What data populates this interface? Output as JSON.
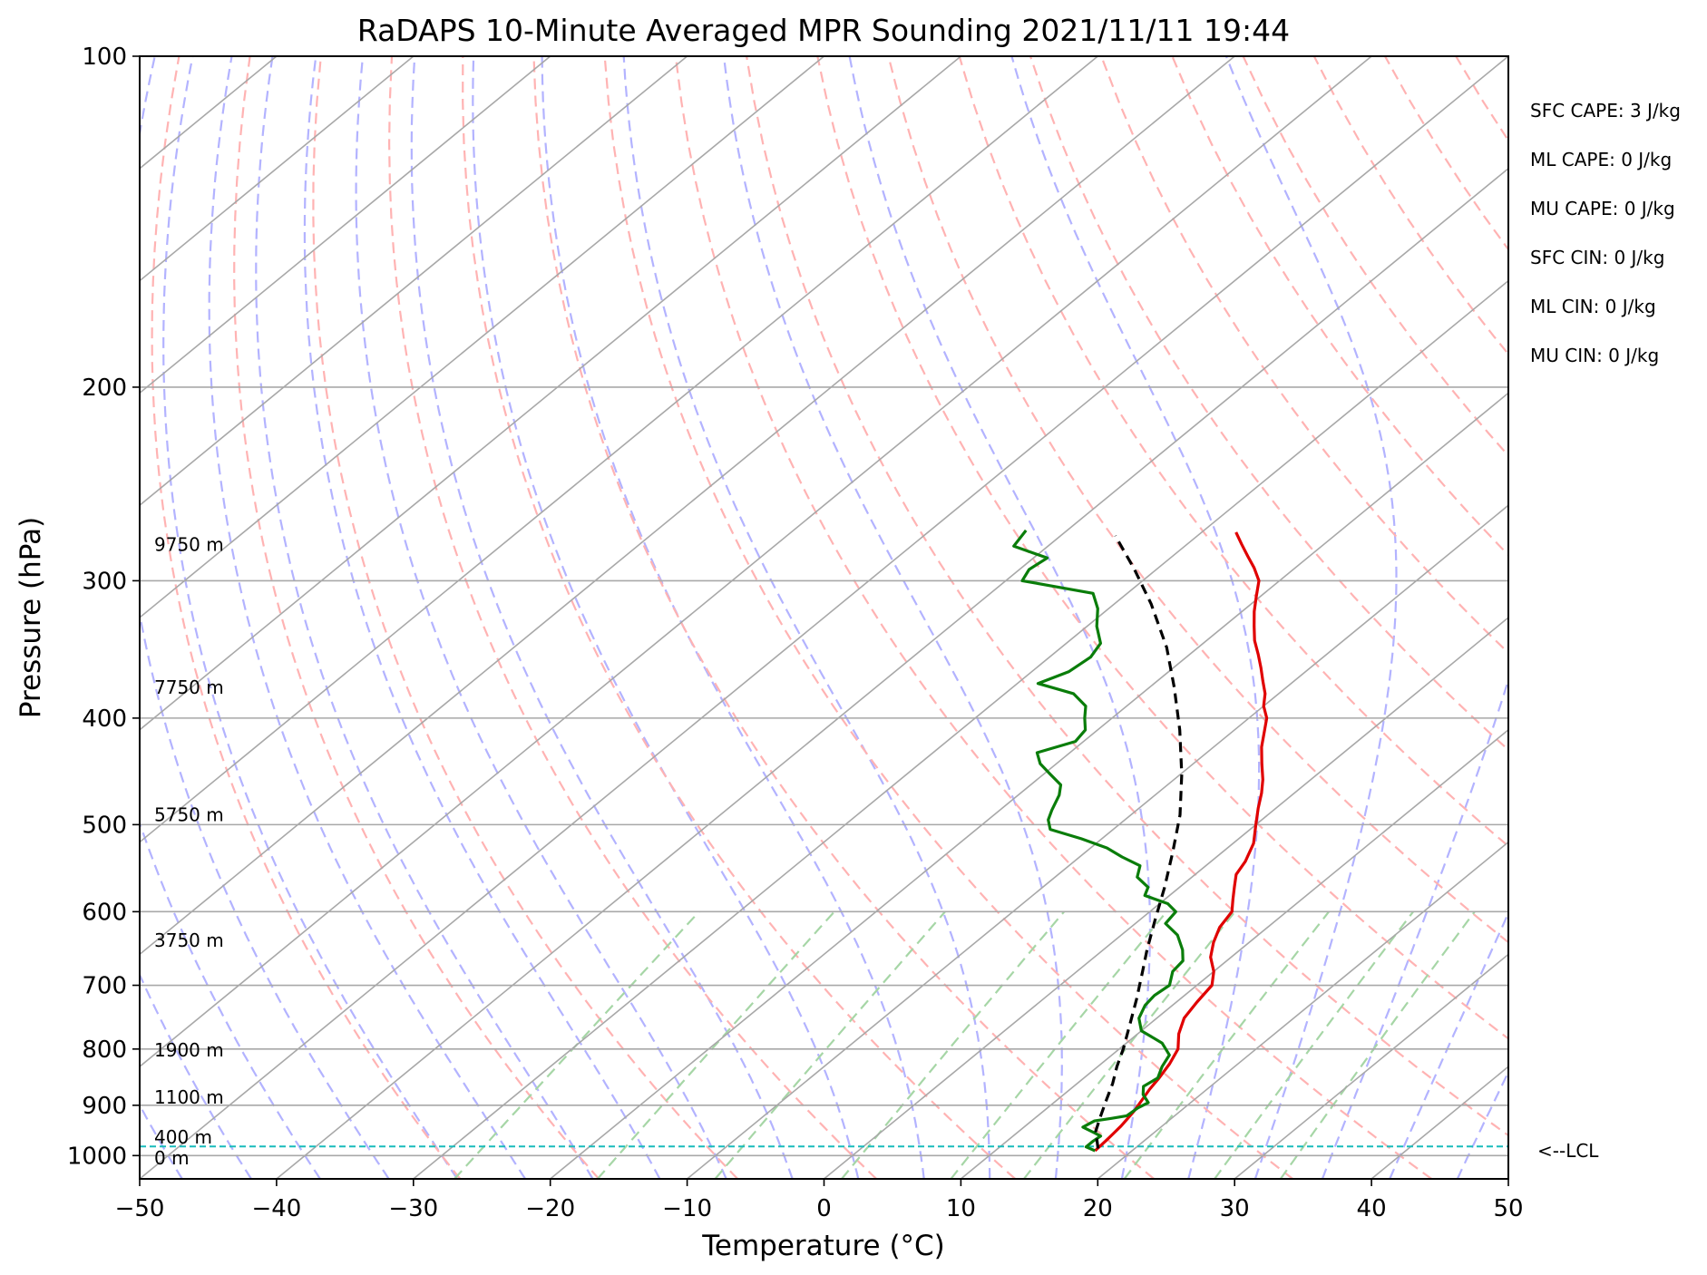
{
  "chart_data": {
    "type": "line",
    "chart_kind": "skew-T log-P diagram",
    "title": "RaDAPS 10-Minute Averaged MPR Sounding 2021/11/11 19:44",
    "xlabel": "Temperature (°C)",
    "ylabel": "Pressure (hPa)",
    "xlim": [
      -50,
      50
    ],
    "ylim": [
      1050,
      100
    ],
    "y_scale": "log",
    "grid": true,
    "x_ticks": [
      "−50",
      "−40",
      "−30",
      "−20",
      "−10",
      "0",
      "10",
      "20",
      "30",
      "40",
      "50"
    ],
    "y_ticks": [
      "100",
      "200",
      "300",
      "400",
      "500",
      "600",
      "700",
      "800",
      "900",
      "1000"
    ],
    "series": [
      {
        "role": "temperature",
        "color": "#e00000",
        "points": [
          [
            17.3,
            990
          ],
          [
            17.2,
            970
          ],
          [
            17.1,
            955
          ],
          [
            17.0,
            940
          ],
          [
            16.8,
            925
          ],
          [
            16.6,
            910
          ],
          [
            16.2,
            890
          ],
          [
            15.8,
            870
          ],
          [
            15.5,
            850
          ],
          [
            15.0,
            825
          ],
          [
            14.3,
            800
          ],
          [
            13.0,
            775
          ],
          [
            12.0,
            750
          ],
          [
            11.5,
            725
          ],
          [
            11.1,
            700
          ],
          [
            10.0,
            680
          ],
          [
            8.5,
            660
          ],
          [
            7.4,
            640
          ],
          [
            6.5,
            620
          ],
          [
            6.0,
            600
          ],
          [
            5.0,
            585
          ],
          [
            4.0,
            570
          ],
          [
            3.0,
            555
          ],
          [
            2.5,
            540
          ],
          [
            1.5,
            520
          ],
          [
            0.0,
            500
          ],
          [
            -1.3,
            483
          ],
          [
            -2.4,
            468
          ],
          [
            -3.5,
            455
          ],
          [
            -5.0,
            440
          ],
          [
            -6.5,
            425
          ],
          [
            -7.8,
            410
          ],
          [
            -8.7,
            400
          ],
          [
            -10.0,
            390
          ],
          [
            -11.0,
            380
          ],
          [
            -12.3,
            370
          ],
          [
            -13.6,
            360
          ],
          [
            -15.0,
            350
          ],
          [
            -16.5,
            340
          ],
          [
            -17.8,
            330
          ],
          [
            -19.1,
            320
          ],
          [
            -20.3,
            310
          ],
          [
            -21.5,
            300
          ],
          [
            -23.0,
            292
          ],
          [
            -24.5,
            285
          ],
          [
            -26.0,
            278
          ],
          [
            -27.5,
            271
          ]
        ]
      },
      {
        "role": "dewpoint",
        "color": "#0a7d0a",
        "points": [
          [
            17.3,
            990
          ],
          [
            16.3,
            982
          ],
          [
            16.3,
            970
          ],
          [
            16.4,
            960
          ],
          [
            15.6,
            953
          ],
          [
            14.3,
            942
          ],
          [
            14.6,
            930
          ],
          [
            15.6,
            925
          ],
          [
            16.5,
            920
          ],
          [
            16.6,
            905
          ],
          [
            16.9,
            895
          ],
          [
            15.8,
            880
          ],
          [
            15.1,
            865
          ],
          [
            15.4,
            850
          ],
          [
            14.7,
            830
          ],
          [
            14.2,
            810
          ],
          [
            12.6,
            790
          ],
          [
            10.0,
            770
          ],
          [
            8.7,
            750
          ],
          [
            8.0,
            730
          ],
          [
            7.8,
            715
          ],
          [
            8.0,
            700
          ],
          [
            7.0,
            680
          ],
          [
            6.8,
            665
          ],
          [
            5.8,
            650
          ],
          [
            4.1,
            630
          ],
          [
            2.2,
            615
          ],
          [
            1.9,
            600
          ],
          [
            0.6,
            590
          ],
          [
            -1.8,
            580
          ],
          [
            -2.3,
            570
          ],
          [
            -4.0,
            558
          ],
          [
            -4.8,
            545
          ],
          [
            -6.9,
            535
          ],
          [
            -8.8,
            525
          ],
          [
            -11.5,
            515
          ],
          [
            -14.6,
            505
          ],
          [
            -15.6,
            495
          ],
          [
            -16.2,
            485
          ],
          [
            -17.0,
            470
          ],
          [
            -17.8,
            460
          ],
          [
            -19.5,
            450
          ],
          [
            -21.2,
            440
          ],
          [
            -22.4,
            430
          ],
          [
            -20.6,
            420
          ],
          [
            -20.9,
            410
          ],
          [
            -22.0,
            400
          ],
          [
            -23.0,
            390
          ],
          [
            -25.0,
            380
          ],
          [
            -28.5,
            372
          ],
          [
            -27.3,
            363
          ],
          [
            -27.0,
            352
          ],
          [
            -27.5,
            342
          ],
          [
            -29.3,
            330
          ],
          [
            -30.8,
            318
          ],
          [
            -32.5,
            308
          ],
          [
            -38.8,
            300
          ],
          [
            -39.3,
            293
          ],
          [
            -39.0,
            286
          ],
          [
            -42.5,
            279
          ],
          [
            -43.0,
            270
          ]
        ]
      },
      {
        "role": "parcel",
        "color": "#000000",
        "style": "dashed",
        "points": [
          [
            17.3,
            985
          ],
          [
            15.6,
            950
          ],
          [
            14.6,
            920
          ],
          [
            13.6,
            890
          ],
          [
            12.6,
            860
          ],
          [
            11.4,
            830
          ],
          [
            10.3,
            800
          ],
          [
            8.6,
            760
          ],
          [
            6.8,
            720
          ],
          [
            4.8,
            680
          ],
          [
            3.2,
            650
          ],
          [
            1.1,
            610
          ],
          [
            -1.1,
            570
          ],
          [
            -3.6,
            530
          ],
          [
            -6.4,
            490
          ],
          [
            -9.9,
            450
          ],
          [
            -14.0,
            410
          ],
          [
            -18.2,
            375
          ],
          [
            -22.3,
            345
          ],
          [
            -27.3,
            315
          ],
          [
            -31.6,
            293
          ],
          [
            -36.0,
            273
          ]
        ]
      }
    ],
    "lcl": {
      "pressure": 981,
      "label": "<--LCL"
    },
    "height_labels": [
      {
        "label": "0 m",
        "pressure": 1005
      },
      {
        "label": "400 m",
        "pressure": 962
      },
      {
        "label": "1100 m",
        "pressure": 885
      },
      {
        "label": "1900 m",
        "pressure": 802
      },
      {
        "label": "3750 m",
        "pressure": 637
      },
      {
        "label": "5750 m",
        "pressure": 490
      },
      {
        "label": "7750 m",
        "pressure": 375
      },
      {
        "label": "9750 m",
        "pressure": 278
      }
    ],
    "indices": [
      "SFC CAPE: 3 J/kg",
      "ML CAPE: 0 J/kg",
      "MU CAPE: 0 J/kg",
      "SFC CIN: 0 J/kg",
      "ML CIN: 0 J/kg",
      "MU CIN: 0 J/kg"
    ],
    "background_lines": {
      "isotherm_color": "#a8a8a8",
      "dry_adiabat_color": "#ffb3b3",
      "moist_adiabat_color": "#b3b3ff",
      "mixing_ratio_color": "#a6d6a6",
      "lcl_line_color": "#19bcbc"
    }
  }
}
